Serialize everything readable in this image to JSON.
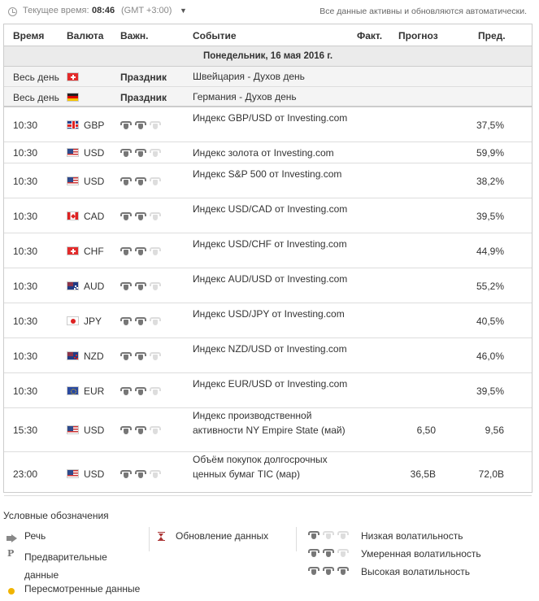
{
  "topbar": {
    "time_label": "Текущее время:",
    "time_value": "08:46",
    "timezone": "(GMT +3:00)",
    "status": "Все данные активны и обновляются автоматически."
  },
  "headers": {
    "time": "Время",
    "currency": "Валюта",
    "importance": "Важн.",
    "event": "Событие",
    "actual": "Факт.",
    "forecast": "Прогноз",
    "previous": "Пред."
  },
  "day_header": "Понедельник, 16 мая 2016 г.",
  "holidays": [
    {
      "time": "Весь день",
      "flag": "ch",
      "label": "Праздник",
      "event": "Швейцария - Духов день"
    },
    {
      "time": "Весь день",
      "flag": "de",
      "label": "Праздник",
      "event": "Германия - Духов день"
    }
  ],
  "events": [
    {
      "time": "10:30",
      "flag": "gb",
      "currency": "GBP",
      "importance": 2,
      "event": "Индекс GBP/USD от Investing.com",
      "actual": "",
      "forecast": "",
      "previous": "37,5%"
    },
    {
      "time": "10:30",
      "flag": "us",
      "currency": "USD",
      "importance": 2,
      "event": "Индекс золота от Investing.com",
      "actual": "",
      "forecast": "",
      "previous": "59,9%"
    },
    {
      "time": "10:30",
      "flag": "us",
      "currency": "USD",
      "importance": 2,
      "event": "Индекс S&P 500 от Investing.com",
      "actual": "",
      "forecast": "",
      "previous": "38,2%"
    },
    {
      "time": "10:30",
      "flag": "ca",
      "currency": "CAD",
      "importance": 2,
      "event": "Индекс USD/CAD от Investing.com",
      "actual": "",
      "forecast": "",
      "previous": "39,5%"
    },
    {
      "time": "10:30",
      "flag": "ch",
      "currency": "CHF",
      "importance": 2,
      "event": "Индекс USD/CHF от Investing.com",
      "actual": "",
      "forecast": "",
      "previous": "44,9%"
    },
    {
      "time": "10:30",
      "flag": "au",
      "currency": "AUD",
      "importance": 2,
      "event": "Индекс AUD/USD от Investing.com",
      "actual": "",
      "forecast": "",
      "previous": "55,2%"
    },
    {
      "time": "10:30",
      "flag": "jp",
      "currency": "JPY",
      "importance": 2,
      "event": "Индекс USD/JPY от Investing.com",
      "actual": "",
      "forecast": "",
      "previous": "40,5%"
    },
    {
      "time": "10:30",
      "flag": "nz",
      "currency": "NZD",
      "importance": 2,
      "event": "Индекс NZD/USD от Investing.com",
      "actual": "",
      "forecast": "",
      "previous": "46,0%"
    },
    {
      "time": "10:30",
      "flag": "eu",
      "currency": "EUR",
      "importance": 2,
      "event": "Индекс EUR/USD от Investing.com",
      "actual": "",
      "forecast": "",
      "previous": "39,5%"
    },
    {
      "time": "15:30",
      "flag": "us",
      "currency": "USD",
      "importance": 2,
      "event": "Индекс производственной активности NY Empire State (май)",
      "actual": "",
      "forecast": "6,50",
      "previous": "9,56"
    },
    {
      "time": "23:00",
      "flag": "us",
      "currency": "USD",
      "importance": 2,
      "event": "Объём покупок долгосрочных ценных бумаг TIC (мар)",
      "actual": "",
      "forecast": "36,5B",
      "previous": "72,0B"
    }
  ],
  "legend": {
    "title": "Условные обозначения",
    "speech": "Речь",
    "preliminary": "Предварительные данные",
    "revised": "Пересмотренные данные",
    "update": "Обновление данных",
    "low": "Низкая волатильность",
    "moderate": "Умеренная волатильность",
    "high": "Высокая волатильность"
  },
  "colors": {
    "bull_on": "#777777",
    "bull_off": "#dddddd",
    "day_header_bg": "#ebebeb",
    "revised_dot": "#f0b400"
  }
}
